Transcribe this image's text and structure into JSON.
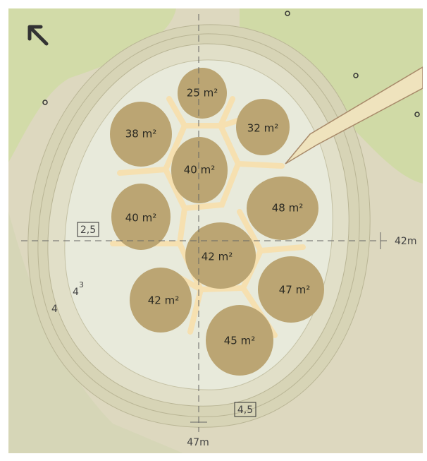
{
  "plots": [
    {
      "label": "25 m²"
    },
    {
      "label": "38 m²"
    },
    {
      "label": "32 m²"
    },
    {
      "label": "40 m²"
    },
    {
      "label": "40 m²"
    },
    {
      "label": "48 m²"
    },
    {
      "label": "42 m²"
    },
    {
      "label": "42 m²"
    },
    {
      "label": "47 m²"
    },
    {
      "label": "45 m²"
    }
  ],
  "dimensions": {
    "width": "42m",
    "height": "47m",
    "left_margin": "2,5",
    "bottom_margin": "4,5"
  },
  "levels": {
    "upper": "4",
    "upper_sup": "3",
    "lower": "4"
  }
}
